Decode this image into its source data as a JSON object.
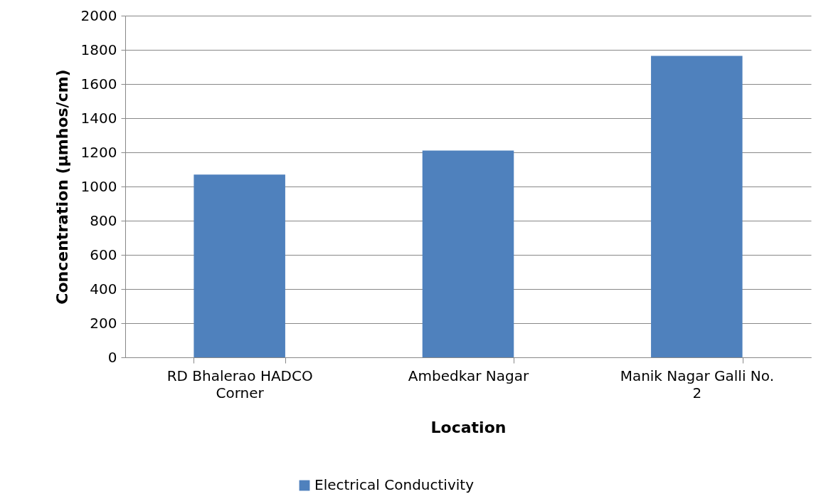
{
  "chart_data": {
    "type": "bar",
    "xlabel": "Location",
    "ylabel": "Concentration (µmhos/cm)",
    "categories": [
      "RD Bhalerao HADCO Corner",
      "Ambedkar Nagar",
      "Manik Nagar Galli No. 2"
    ],
    "series": [
      {
        "name": "Electrical Conductivity",
        "color": "#4f81bd",
        "values": [
          1070,
          1210,
          1765
        ]
      }
    ],
    "ylim": [
      0,
      2000
    ],
    "yticks": [
      0,
      200,
      400,
      600,
      800,
      1000,
      1200,
      1400,
      1600,
      1800,
      2000
    ],
    "grid": "y",
    "legend": "bottom"
  }
}
